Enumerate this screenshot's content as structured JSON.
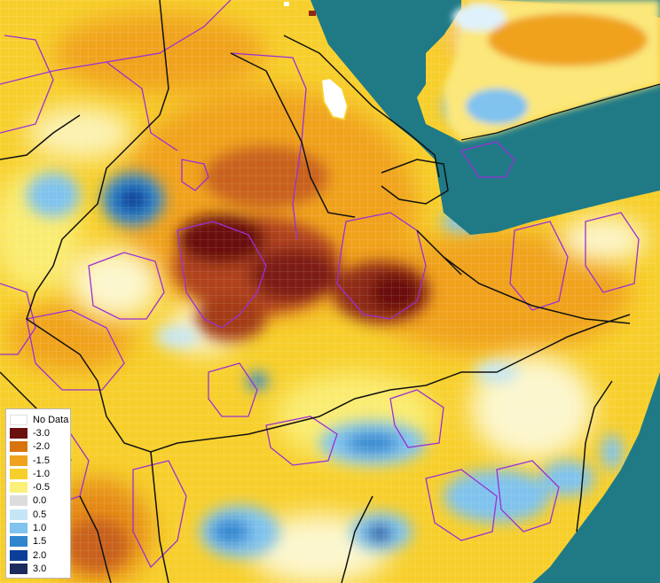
{
  "map": {
    "colors": {
      "sea": "#1f7a86",
      "country_border": "#111111",
      "admin_border": "#9b2fd6"
    },
    "legend": {
      "items": [
        {
          "label": "No Data",
          "color": "#ffffff"
        },
        {
          "label": "-3.0",
          "color": "#6b0f0f"
        },
        {
          "label": "-2.0",
          "color": "#d9730d"
        },
        {
          "label": "-1.5",
          "color": "#f0a21f"
        },
        {
          "label": "-1.0",
          "color": "#f7cf2c"
        },
        {
          "label": "-0.5",
          "color": "#fbf07a"
        },
        {
          "label": "0.0",
          "color": "#dcdcdc"
        },
        {
          "label": "0.5",
          "color": "#c4e6f7"
        },
        {
          "label": "1.0",
          "color": "#7fc3ee"
        },
        {
          "label": "1.5",
          "color": "#2f86cf"
        },
        {
          "label": "2.0",
          "color": "#0c3f97"
        },
        {
          "label": "3.0",
          "color": "#1d2a5c"
        }
      ]
    }
  }
}
